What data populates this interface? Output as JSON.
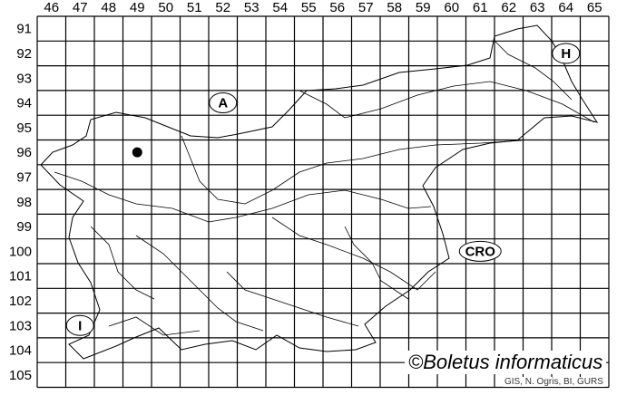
{
  "grid": {
    "columns": [
      "46",
      "47",
      "48",
      "49",
      "50",
      "51",
      "52",
      "53",
      "54",
      "55",
      "56",
      "57",
      "58",
      "59",
      "60",
      "61",
      "62",
      "63",
      "64",
      "65"
    ],
    "rows": [
      "91",
      "92",
      "93",
      "94",
      "95",
      "96",
      "97",
      "98",
      "99",
      "100",
      "101",
      "102",
      "103",
      "104",
      "105"
    ]
  },
  "occurrences": [
    {
      "column": "49",
      "row": "96"
    }
  ],
  "country_labels": [
    {
      "code": "A",
      "column": "52",
      "row": "94"
    },
    {
      "code": "H",
      "column": "64",
      "row": "92"
    },
    {
      "code": "CRO",
      "column": "61",
      "row": "100"
    },
    {
      "code": "I",
      "column": "47",
      "row": "103"
    }
  ],
  "copyright": "©Boletus informaticus",
  "credit": "GIS, N. Ogris, BI, GURS",
  "colors": {
    "grid": "#000000",
    "border": "#000000",
    "dot": "#000000"
  }
}
